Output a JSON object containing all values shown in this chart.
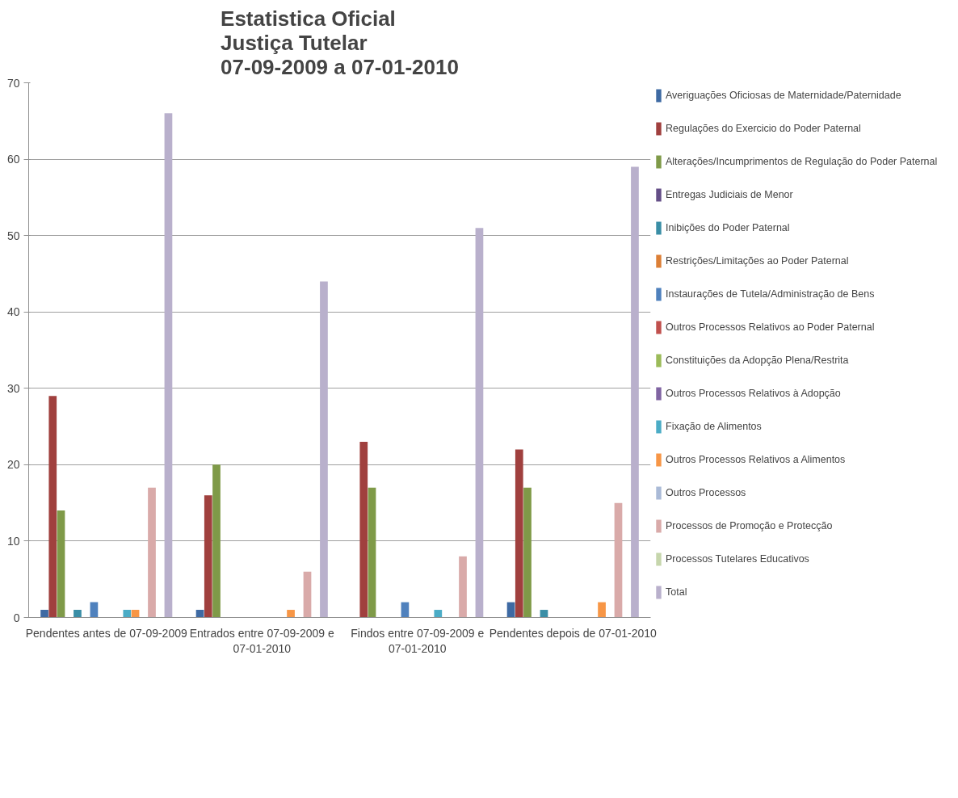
{
  "chart_data": {
    "type": "bar",
    "title": "Estatistica Oficial\nJustiça Tutelar\n07-09-2009 a 07-01-2010",
    "categories": [
      "Pendentes antes de 07-09-2009",
      "Entrados entre 07-09-2009 e 07-01-2010",
      "Findos entre 07-09-2009 e 07-01-2010",
      "Pendentes depois de 07-01-2010"
    ],
    "series": [
      {
        "name": "Averiguações Oficiosas de Maternidade/Paternidade",
        "color": "#3e6aa3",
        "values": [
          1,
          1,
          0,
          2
        ]
      },
      {
        "name": "Regulações do Exercicio do Poder Paternal",
        "color": "#a0403e",
        "values": [
          29,
          16,
          23,
          22
        ]
      },
      {
        "name": "Alterações/Incumprimentos de Regulação do Poder Paternal",
        "color": "#7f9a48",
        "values": [
          14,
          20,
          17,
          17
        ]
      },
      {
        "name": "Entregas Judiciais de Menor",
        "color": "#644e87",
        "values": [
          0,
          0,
          0,
          0
        ]
      },
      {
        "name": "Inibições do Poder Paternal",
        "color": "#3a8ea6",
        "values": [
          1,
          0,
          0,
          1
        ]
      },
      {
        "name": "Restrições/Limitações ao Poder Paternal",
        "color": "#dc7f36",
        "values": [
          0,
          0,
          0,
          0
        ]
      },
      {
        "name": "Instaurações de Tutela/Administração de Bens",
        "color": "#4f81bd",
        "values": [
          2,
          0,
          2,
          0
        ]
      },
      {
        "name": "Outros Processos Relativos ao Poder Paternal",
        "color": "#c0504d",
        "values": [
          0,
          0,
          0,
          0
        ]
      },
      {
        "name": "Constituições da Adopção Plena/Restrita",
        "color": "#9bbb59",
        "values": [
          0,
          0,
          0,
          0
        ]
      },
      {
        "name": "Outros Processos Relativos à Adopção",
        "color": "#8064a2",
        "values": [
          0,
          0,
          0,
          0
        ]
      },
      {
        "name": "Fixação de Alimentos",
        "color": "#4bacc6",
        "values": [
          1,
          0,
          1,
          0
        ]
      },
      {
        "name": "Outros Processos Relativos a Alimentos",
        "color": "#f79646",
        "values": [
          1,
          1,
          0,
          2
        ]
      },
      {
        "name": "Outros Processos",
        "color": "#aabad7",
        "values": [
          0,
          0,
          0,
          0
        ]
      },
      {
        "name": "Processos de Promoção e Protecção",
        "color": "#d9aaa9",
        "values": [
          17,
          6,
          8,
          15
        ]
      },
      {
        "name": "Processos Tutelares Educativos",
        "color": "#c6d6ac",
        "values": [
          0,
          0,
          0,
          0
        ]
      },
      {
        "name": "Total",
        "color": "#b9b0cc",
        "values": [
          66,
          44,
          51,
          59
        ]
      }
    ],
    "ylim": [
      0,
      70
    ],
    "yticks": [
      0,
      10,
      20,
      30,
      40,
      50,
      60,
      70
    ],
    "grid": "y",
    "legend": "right"
  }
}
